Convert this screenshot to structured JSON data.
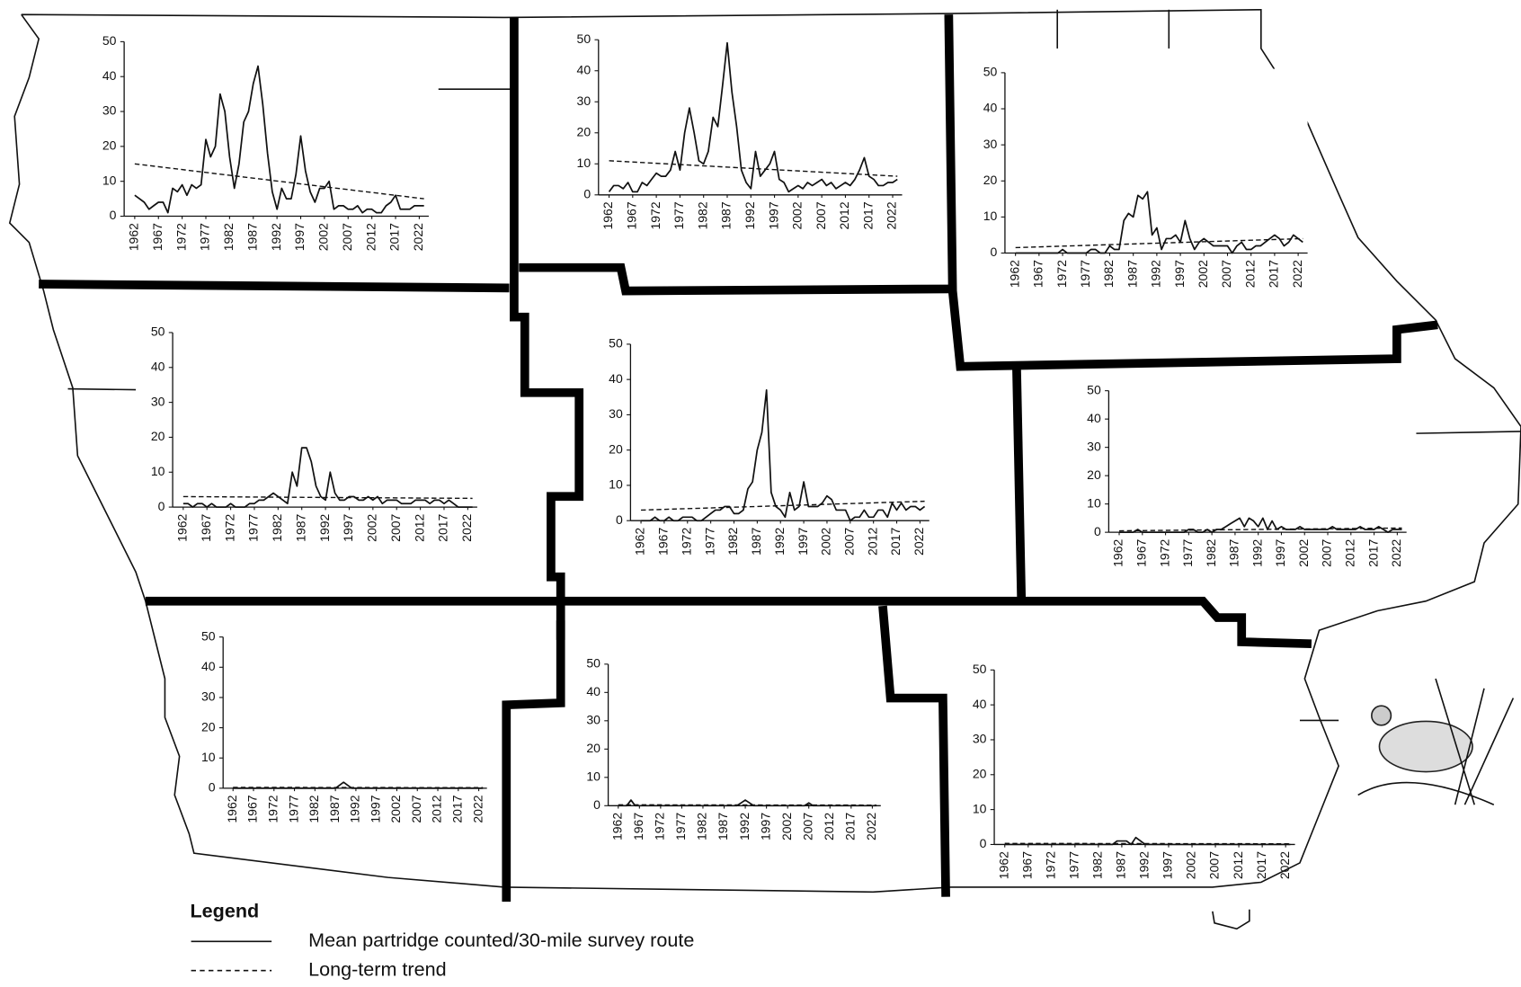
{
  "chart_data": [
    {
      "type": "line",
      "x": [
        1962,
        1963,
        1964,
        1965,
        1966,
        1967,
        1968,
        1969,
        1970,
        1971,
        1972,
        1973,
        1974,
        1975,
        1976,
        1977,
        1978,
        1979,
        1980,
        1981,
        1982,
        1983,
        1984,
        1985,
        1986,
        1987,
        1988,
        1989,
        1990,
        1991,
        1992,
        1993,
        1994,
        1995,
        1996,
        1997,
        1998,
        1999,
        2000,
        2001,
        2002,
        2003,
        2004,
        2005,
        2006,
        2007,
        2008,
        2009,
        2010,
        2011,
        2012,
        2013,
        2014,
        2015,
        2016,
        2017,
        2018,
        2019,
        2020,
        2021,
        2022,
        2023
      ],
      "values": [
        6,
        5,
        4,
        2,
        3,
        4,
        4,
        1,
        8,
        7,
        9,
        6,
        9,
        8,
        9,
        22,
        17,
        20,
        35,
        30,
        17,
        8,
        15,
        27,
        30,
        38,
        43,
        32,
        18,
        7,
        2,
        8,
        5,
        5,
        12,
        23,
        13,
        7,
        4,
        8,
        8,
        10,
        2,
        3,
        3,
        2,
        2,
        3,
        1,
        2,
        2,
        1,
        1,
        3,
        4,
        6,
        2,
        2,
        2,
        3,
        3,
        3
      ],
      "trend": {
        "x": [
          1962,
          2023
        ],
        "values": [
          15,
          5
        ]
      },
      "xlim": [
        1961,
        2024
      ],
      "ylim": [
        0,
        50
      ],
      "xticks": [
        1962,
        1967,
        1972,
        1977,
        1982,
        1987,
        1992,
        1997,
        2002,
        2007,
        2012,
        2017,
        2022
      ],
      "yticks": [
        0,
        10,
        20,
        30,
        40,
        50
      ]
    },
    {
      "type": "line",
      "x": [
        1962,
        1963,
        1964,
        1965,
        1966,
        1967,
        1968,
        1969,
        1970,
        1971,
        1972,
        1973,
        1974,
        1975,
        1976,
        1977,
        1978,
        1979,
        1980,
        1981,
        1982,
        1983,
        1984,
        1985,
        1986,
        1987,
        1988,
        1989,
        1990,
        1991,
        1992,
        1993,
        1994,
        1995,
        1996,
        1997,
        1998,
        1999,
        2000,
        2001,
        2002,
        2003,
        2004,
        2005,
        2006,
        2007,
        2008,
        2009,
        2010,
        2011,
        2012,
        2013,
        2014,
        2015,
        2016,
        2017,
        2018,
        2019,
        2020,
        2021,
        2022,
        2023
      ],
      "values": [
        1,
        3,
        3,
        2,
        4,
        1,
        1,
        4,
        3,
        5,
        7,
        6,
        6,
        8,
        14,
        8,
        20,
        28,
        20,
        11,
        10,
        14,
        25,
        22,
        35,
        49,
        33,
        22,
        8,
        4,
        2,
        14,
        6,
        8,
        10,
        14,
        5,
        4,
        1,
        2,
        3,
        2,
        4,
        3,
        4,
        5,
        3,
        4,
        2,
        3,
        4,
        3,
        5,
        8,
        12,
        6,
        5,
        3,
        3,
        4,
        4,
        5
      ],
      "trend": {
        "x": [
          1962,
          2023
        ],
        "values": [
          11,
          6
        ]
      },
      "xlim": [
        1961,
        2024
      ],
      "ylim": [
        0,
        50
      ],
      "xticks": [
        1962,
        1967,
        1972,
        1977,
        1982,
        1987,
        1992,
        1997,
        2002,
        2007,
        2012,
        2017,
        2022
      ],
      "yticks": [
        0,
        10,
        20,
        30,
        40,
        50
      ]
    },
    {
      "type": "line",
      "x": [
        1962,
        1963,
        1964,
        1965,
        1966,
        1967,
        1968,
        1969,
        1970,
        1971,
        1972,
        1973,
        1974,
        1975,
        1976,
        1977,
        1978,
        1979,
        1980,
        1981,
        1982,
        1983,
        1984,
        1985,
        1986,
        1987,
        1988,
        1989,
        1990,
        1991,
        1992,
        1993,
        1994,
        1995,
        1996,
        1997,
        1998,
        1999,
        2000,
        2001,
        2002,
        2003,
        2004,
        2005,
        2006,
        2007,
        2008,
        2009,
        2010,
        2011,
        2012,
        2013,
        2014,
        2015,
        2016,
        2017,
        2018,
        2019,
        2020,
        2021,
        2022,
        2023
      ],
      "values": [
        0,
        0,
        0,
        0,
        0,
        0,
        0,
        0,
        0,
        0,
        1,
        0,
        0,
        0,
        0,
        0,
        1,
        1,
        0,
        0,
        2,
        1,
        1,
        9,
        11,
        10,
        16,
        15,
        17,
        5,
        7,
        1,
        4,
        4,
        5,
        3,
        9,
        4,
        1,
        3,
        4,
        3,
        2,
        2,
        2,
        2,
        0,
        2,
        3,
        1,
        1,
        2,
        2,
        3,
        4,
        5,
        4,
        2,
        3,
        5,
        4,
        3
      ],
      "trend": {
        "x": [
          1962,
          2023
        ],
        "values": [
          1.5,
          4
        ]
      },
      "xlim": [
        1961,
        2024
      ],
      "ylim": [
        0,
        50
      ],
      "xticks": [
        1962,
        1967,
        1972,
        1977,
        1982,
        1987,
        1992,
        1997,
        2002,
        2007,
        2012,
        2017,
        2022
      ],
      "yticks": [
        0,
        10,
        20,
        30,
        40,
        50
      ]
    },
    {
      "type": "line",
      "x": [
        1962,
        1963,
        1964,
        1965,
        1966,
        1967,
        1968,
        1969,
        1970,
        1971,
        1972,
        1973,
        1974,
        1975,
        1976,
        1977,
        1978,
        1979,
        1980,
        1981,
        1982,
        1983,
        1984,
        1985,
        1986,
        1987,
        1988,
        1989,
        1990,
        1991,
        1992,
        1993,
        1994,
        1995,
        1996,
        1997,
        1998,
        1999,
        2000,
        2001,
        2002,
        2003,
        2004,
        2005,
        2006,
        2007,
        2008,
        2009,
        2010,
        2011,
        2012,
        2013,
        2014,
        2015,
        2016,
        2017,
        2018,
        2019,
        2020,
        2021,
        2022,
        2023
      ],
      "values": [
        1,
        1,
        0,
        1,
        1,
        0,
        1,
        0,
        0,
        0,
        1,
        0,
        0,
        0,
        1,
        1,
        2,
        2,
        3,
        4,
        3,
        2,
        1,
        10,
        6,
        17,
        17,
        13,
        6,
        3,
        2,
        10,
        4,
        2,
        2,
        3,
        3,
        2,
        2,
        3,
        2,
        3,
        1,
        2,
        2,
        2,
        1,
        1,
        1,
        2,
        2,
        2,
        1,
        2,
        2,
        1,
        2,
        1,
        0,
        0,
        0,
        0
      ],
      "trend": {
        "x": [
          1962,
          2023
        ],
        "values": [
          3,
          2.5
        ]
      },
      "xlim": [
        1961,
        2024
      ],
      "ylim": [
        0,
        50
      ],
      "xticks": [
        1962,
        1967,
        1972,
        1977,
        1982,
        1987,
        1992,
        1997,
        2002,
        2007,
        2012,
        2017,
        2022
      ],
      "yticks": [
        0,
        10,
        20,
        30,
        40,
        50
      ]
    },
    {
      "type": "line",
      "x": [
        1962,
        1963,
        1964,
        1965,
        1966,
        1967,
        1968,
        1969,
        1970,
        1971,
        1972,
        1973,
        1974,
        1975,
        1976,
        1977,
        1978,
        1979,
        1980,
        1981,
        1982,
        1983,
        1984,
        1985,
        1986,
        1987,
        1988,
        1989,
        1990,
        1991,
        1992,
        1993,
        1994,
        1995,
        1996,
        1997,
        1998,
        1999,
        2000,
        2001,
        2002,
        2003,
        2004,
        2005,
        2006,
        2007,
        2008,
        2009,
        2010,
        2011,
        2012,
        2013,
        2014,
        2015,
        2016,
        2017,
        2018,
        2019,
        2020,
        2021,
        2022,
        2023
      ],
      "values": [
        0,
        0,
        0,
        1,
        0,
        0,
        1,
        0,
        0,
        1,
        1,
        1,
        0,
        0,
        1,
        2,
        3,
        3,
        4,
        4,
        2,
        2,
        3,
        9,
        11,
        20,
        25,
        37,
        8,
        4,
        3,
        1,
        8,
        3,
        4,
        11,
        4,
        4,
        4,
        5,
        7,
        6,
        3,
        3,
        3,
        0,
        1,
        1,
        3,
        1,
        1,
        3,
        3,
        1,
        5,
        3,
        5,
        3,
        4,
        4,
        3,
        4
      ],
      "trend": {
        "x": [
          1962,
          2023
        ],
        "values": [
          3,
          5.5
        ]
      },
      "xlim": [
        1961,
        2024
      ],
      "ylim": [
        0,
        50
      ],
      "xticks": [
        1962,
        1967,
        1972,
        1977,
        1982,
        1987,
        1992,
        1997,
        2002,
        2007,
        2012,
        2017,
        2022
      ],
      "yticks": [
        0,
        10,
        20,
        30,
        40,
        50
      ]
    },
    {
      "type": "line",
      "x": [
        1962,
        1963,
        1964,
        1965,
        1966,
        1967,
        1968,
        1969,
        1970,
        1971,
        1972,
        1973,
        1974,
        1975,
        1976,
        1977,
        1978,
        1979,
        1980,
        1981,
        1982,
        1983,
        1984,
        1985,
        1986,
        1987,
        1988,
        1989,
        1990,
        1991,
        1992,
        1993,
        1994,
        1995,
        1996,
        1997,
        1998,
        1999,
        2000,
        2001,
        2002,
        2003,
        2004,
        2005,
        2006,
        2007,
        2008,
        2009,
        2010,
        2011,
        2012,
        2013,
        2014,
        2015,
        2016,
        2017,
        2018,
        2019,
        2020,
        2021,
        2022,
        2023
      ],
      "values": [
        0,
        0,
        0,
        0,
        1,
        0,
        0,
        0,
        0,
        0,
        0,
        0,
        0,
        0,
        0,
        1,
        1,
        0,
        0,
        1,
        0,
        1,
        1,
        2,
        3,
        4,
        5,
        2,
        5,
        4,
        2,
        5,
        1,
        4,
        1,
        2,
        1,
        1,
        1,
        2,
        1,
        1,
        1,
        1,
        1,
        1,
        2,
        1,
        1,
        1,
        1,
        1,
        2,
        1,
        1,
        1,
        2,
        1,
        0,
        1,
        1,
        1
      ],
      "trend": {
        "x": [
          1962,
          2023
        ],
        "values": [
          0.5,
          1.5
        ]
      },
      "xlim": [
        1961,
        2024
      ],
      "ylim": [
        0,
        50
      ],
      "xticks": [
        1962,
        1967,
        1972,
        1977,
        1982,
        1987,
        1992,
        1997,
        2002,
        2007,
        2012,
        2017,
        2022
      ],
      "yticks": [
        0,
        10,
        20,
        30,
        40,
        50
      ]
    },
    {
      "type": "line",
      "x": [
        1962,
        1963,
        1964,
        1965,
        1966,
        1967,
        1968,
        1969,
        1970,
        1971,
        1972,
        1973,
        1974,
        1975,
        1976,
        1977,
        1978,
        1979,
        1980,
        1981,
        1982,
        1983,
        1984,
        1985,
        1986,
        1987,
        1988,
        1989,
        1990,
        1991,
        1992,
        1993,
        1994,
        1995,
        1996,
        1997,
        1998,
        1999,
        2000,
        2001,
        2002,
        2003,
        2004,
        2005,
        2006,
        2007,
        2008,
        2009,
        2010,
        2011,
        2012,
        2013,
        2014,
        2015,
        2016,
        2017,
        2018,
        2019,
        2020,
        2021,
        2022,
        2023
      ],
      "values": [
        0,
        0,
        0,
        0,
        0,
        0,
        0,
        0,
        0,
        0,
        0,
        0,
        0,
        0,
        0,
        0,
        0,
        0,
        0,
        0,
        0,
        0,
        0,
        0,
        0,
        0,
        1,
        2,
        1,
        0,
        0,
        0,
        0,
        0,
        0,
        0,
        0,
        0,
        0,
        0,
        0,
        0,
        0,
        0,
        0,
        0,
        0,
        0,
        0,
        0,
        0,
        0,
        0,
        0,
        0,
        0,
        0,
        0,
        0,
        0,
        0,
        0
      ],
      "trend": {
        "x": [
          1962,
          2023
        ],
        "values": [
          0.3,
          0.2
        ]
      },
      "xlim": [
        1961,
        2024
      ],
      "ylim": [
        0,
        50
      ],
      "xticks": [
        1962,
        1967,
        1972,
        1977,
        1982,
        1987,
        1992,
        1997,
        2002,
        2007,
        2012,
        2017,
        2022
      ],
      "yticks": [
        0,
        10,
        20,
        30,
        40,
        50
      ]
    },
    {
      "type": "line",
      "x": [
        1962,
        1963,
        1964,
        1965,
        1966,
        1967,
        1968,
        1969,
        1970,
        1971,
        1972,
        1973,
        1974,
        1975,
        1976,
        1977,
        1978,
        1979,
        1980,
        1981,
        1982,
        1983,
        1984,
        1985,
        1986,
        1987,
        1988,
        1989,
        1990,
        1991,
        1992,
        1993,
        1994,
        1995,
        1996,
        1997,
        1998,
        1999,
        2000,
        2001,
        2002,
        2003,
        2004,
        2005,
        2006,
        2007,
        2008,
        2009,
        2010,
        2011,
        2012,
        2013,
        2014,
        2015,
        2016,
        2017,
        2018,
        2019,
        2020,
        2021,
        2022,
        2023
      ],
      "values": [
        0,
        0,
        0,
        2,
        0,
        0,
        0,
        0,
        0,
        0,
        0,
        0,
        0,
        0,
        0,
        0,
        0,
        0,
        0,
        0,
        0,
        0,
        0,
        0,
        0,
        0,
        0,
        0,
        0,
        1,
        2,
        1,
        0,
        0,
        0,
        0,
        0,
        0,
        0,
        0,
        0,
        0,
        0,
        0,
        0,
        1,
        0,
        0,
        0,
        0,
        0,
        0,
        0,
        0,
        0,
        0,
        0,
        0,
        0,
        0,
        0,
        0
      ],
      "trend": {
        "x": [
          1962,
          2023
        ],
        "values": [
          0.3,
          0.2
        ]
      },
      "xlim": [
        1961,
        2024
      ],
      "ylim": [
        0,
        50
      ],
      "xticks": [
        1962,
        1967,
        1972,
        1977,
        1982,
        1987,
        1992,
        1997,
        2002,
        2007,
        2012,
        2017,
        2022
      ],
      "yticks": [
        0,
        10,
        20,
        30,
        40,
        50
      ]
    },
    {
      "type": "line",
      "x": [
        1962,
        1963,
        1964,
        1965,
        1966,
        1967,
        1968,
        1969,
        1970,
        1971,
        1972,
        1973,
        1974,
        1975,
        1976,
        1977,
        1978,
        1979,
        1980,
        1981,
        1982,
        1983,
        1984,
        1985,
        1986,
        1987,
        1988,
        1989,
        1990,
        1991,
        1992,
        1993,
        1994,
        1995,
        1996,
        1997,
        1998,
        1999,
        2000,
        2001,
        2002,
        2003,
        2004,
        2005,
        2006,
        2007,
        2008,
        2009,
        2010,
        2011,
        2012,
        2013,
        2014,
        2015,
        2016,
        2017,
        2018,
        2019,
        2020,
        2021,
        2022,
        2023
      ],
      "values": [
        0,
        0,
        0,
        0,
        0,
        0,
        0,
        0,
        0,
        0,
        0,
        0,
        0,
        0,
        0,
        0,
        0,
        0,
        0,
        0,
        0,
        0,
        0,
        0,
        1,
        1,
        1,
        0,
        2,
        1,
        0,
        0,
        0,
        0,
        0,
        0,
        0,
        0,
        0,
        0,
        0,
        0,
        0,
        0,
        0,
        0,
        0,
        0,
        0,
        0,
        0,
        0,
        0,
        0,
        0,
        0,
        0,
        0,
        0,
        0,
        0,
        0
      ],
      "trend": {
        "x": [
          1962,
          2023
        ],
        "values": [
          0.3,
          0.2
        ]
      },
      "xlim": [
        1961,
        2024
      ],
      "ylim": [
        0,
        50
      ],
      "xticks": [
        1962,
        1967,
        1972,
        1977,
        1982,
        1987,
        1992,
        1997,
        2002,
        2007,
        2012,
        2017,
        2022
      ],
      "yticks": [
        0,
        10,
        20,
        30,
        40,
        50
      ]
    }
  ],
  "legend": {
    "title": "Legend",
    "items": [
      "Mean partridge counted/30-mile survey route",
      "Long-term trend"
    ]
  }
}
